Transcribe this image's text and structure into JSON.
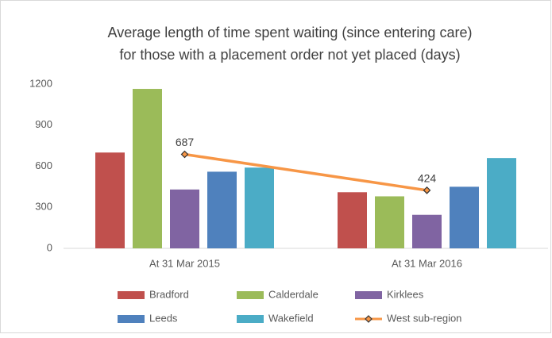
{
  "chart_data": {
    "type": "bar",
    "title": [
      "Average length of time spent waiting (since entering care)",
      "for those with a placement order not yet placed (days)"
    ],
    "categories": [
      "At 31 Mar 2015",
      "At 31 Mar 2016"
    ],
    "series": [
      {
        "name": "Bradford",
        "color": "#c0504d",
        "values": [
          700,
          410
        ]
      },
      {
        "name": "Calderdale",
        "color": "#9bbb59",
        "values": [
          1165,
          380
        ]
      },
      {
        "name": "Kirklees",
        "color": "#8064a2",
        "values": [
          430,
          245
        ]
      },
      {
        "name": "Leeds",
        "color": "#4f81bd",
        "values": [
          560,
          450
        ]
      },
      {
        "name": "Wakefield",
        "color": "#4bacc6",
        "values": [
          590,
          660
        ]
      },
      {
        "name": "West sub-region",
        "color": "#f79646",
        "type": "line",
        "values": [
          687,
          424
        ]
      }
    ],
    "ylim": [
      0,
      1200
    ],
    "yticks": [
      0,
      300,
      600,
      900,
      1200
    ],
    "grid": false,
    "legend": "bottom"
  }
}
